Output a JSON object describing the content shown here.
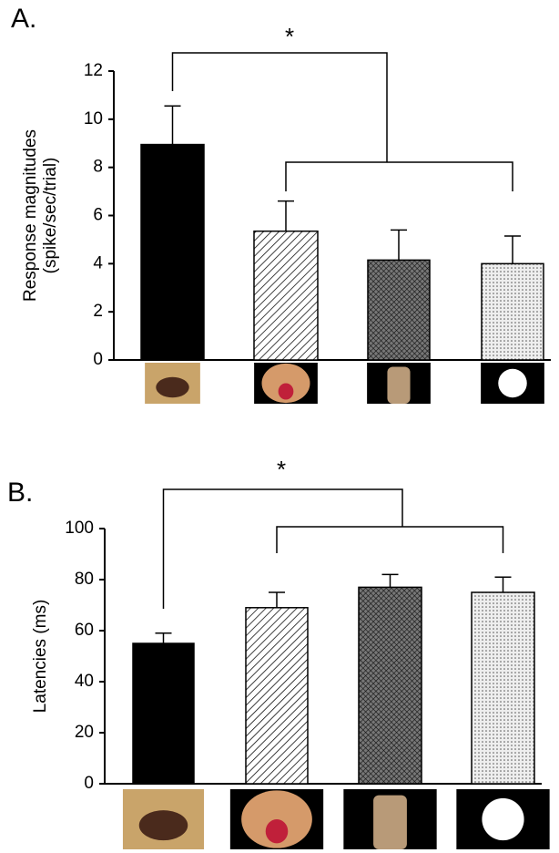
{
  "chart_data": [
    {
      "type": "bar",
      "panel_label": "A.",
      "significance": "*",
      "ylabel": [
        "Response magnitudes",
        "(spike/sec/trial)"
      ],
      "categories": [
        null,
        null,
        null,
        null
      ],
      "values": [
        8.95,
        5.35,
        4.15,
        4.0
      ],
      "errors": [
        1.6,
        1.25,
        1.25,
        1.15
      ],
      "patterns": [
        "solid",
        "diagonal",
        "crosshatch",
        "dots"
      ],
      "ylim": [
        0,
        12
      ],
      "yticks": [
        0,
        2,
        4,
        6,
        8,
        10,
        12
      ]
    },
    {
      "type": "bar",
      "panel_label": "B.",
      "significance": "*",
      "ylabel": [
        "Latencies (ms)"
      ],
      "categories": [
        null,
        null,
        null,
        null
      ],
      "values": [
        55,
        69,
        77,
        75
      ],
      "errors": [
        4,
        6,
        5,
        6
      ],
      "patterns": [
        "solid",
        "diagonal",
        "crosshatch",
        "dots"
      ],
      "ylim": [
        0,
        100
      ],
      "yticks": [
        0,
        20,
        40,
        60,
        80,
        100
      ]
    }
  ]
}
